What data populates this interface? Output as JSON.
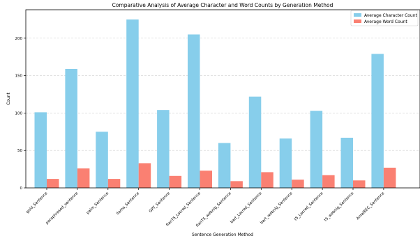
{
  "chart_data": {
    "type": "bar",
    "title": "Comparative Analysis of Average Character and Word Counts by Generation Method",
    "xlabel": "Sentence Generation Method",
    "ylabel": "Count",
    "ylim": [
      0,
      238
    ],
    "yticks": [
      0,
      50,
      100,
      150,
      200
    ],
    "grid": "horizontal dashed",
    "legend_position": "top-right",
    "categories": [
      "gold_Sentence",
      "paraphrased_sentence",
      "palm_Sentence",
      "llama_Sentence",
      "GPT_Sentence",
      "flanT5_Lacred_Sentence",
      "flanT5_webnlg_Sentence",
      "bart_Lacred_Sentence",
      "bart_webnlg_Sentence",
      "t5_Lacred_Sentence",
      "t5_webnlg_Sentence",
      "AmalREC_Sentence"
    ],
    "series": [
      {
        "name": "Average Character Count",
        "color": "#87CEEB",
        "values": [
          101,
          159,
          75,
          225,
          104,
          205,
          60,
          122,
          66,
          103,
          67,
          179
        ]
      },
      {
        "name": "Average Word Count",
        "color": "#FA8072",
        "values": [
          12,
          26,
          12,
          33,
          16,
          23,
          9,
          21,
          11,
          17,
          10,
          27
        ]
      }
    ]
  }
}
